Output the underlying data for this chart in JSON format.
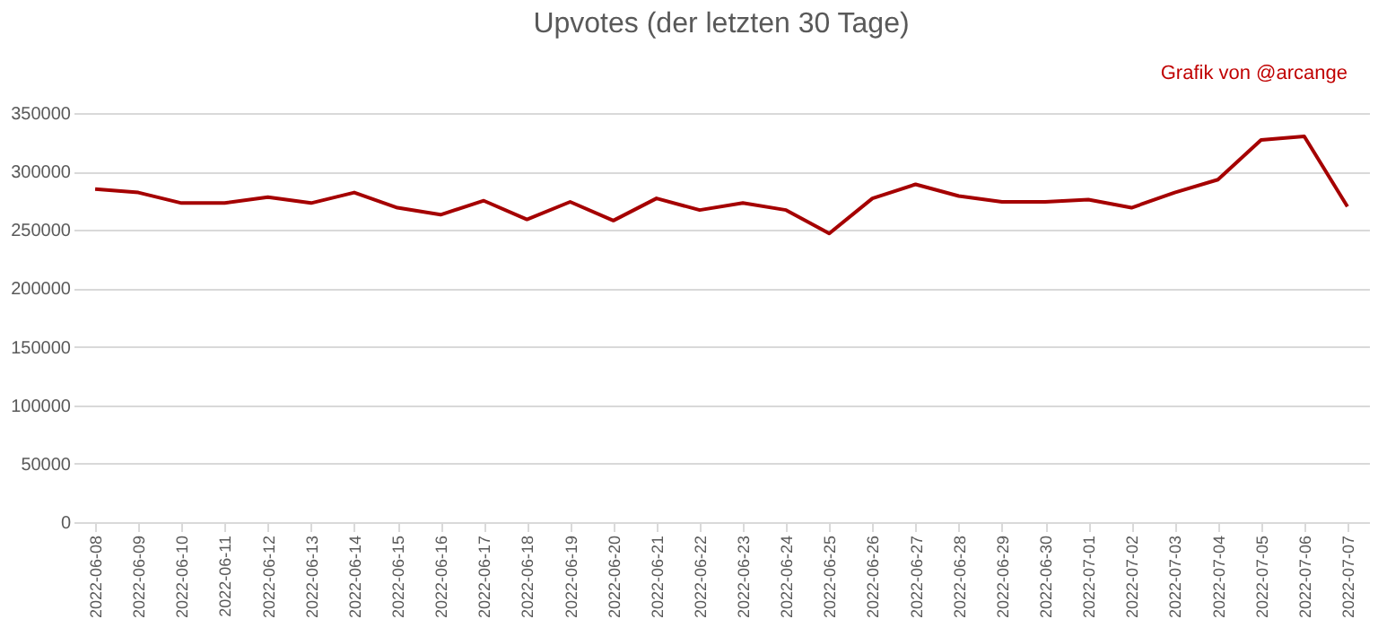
{
  "chart_data": {
    "type": "line",
    "title": "Upvotes (der letzten 30 Tage)",
    "annotations": [
      "Grafik von @arcange"
    ],
    "categories": [
      "2022-06-08",
      "2022-06-09",
      "2022-06-10",
      "2022-06-11",
      "2022-06-12",
      "2022-06-13",
      "2022-06-14",
      "2022-06-15",
      "2022-06-16",
      "2022-06-17",
      "2022-06-18",
      "2022-06-19",
      "2022-06-20",
      "2022-06-21",
      "2022-06-22",
      "2022-06-23",
      "2022-06-24",
      "2022-06-25",
      "2022-06-26",
      "2022-06-27",
      "2022-06-28",
      "2022-06-29",
      "2022-06-30",
      "2022-07-01",
      "2022-07-02",
      "2022-07-03",
      "2022-07-04",
      "2022-07-05",
      "2022-07-06",
      "2022-07-07"
    ],
    "series": [
      {
        "color": "#a50000",
        "values": [
          285000,
          282000,
          273000,
          273000,
          278000,
          273000,
          282000,
          269000,
          263000,
          275000,
          259000,
          274000,
          258000,
          277000,
          267000,
          273000,
          267000,
          247000,
          277000,
          289000,
          279000,
          274000,
          274000,
          276000,
          269000,
          282000,
          293000,
          327000,
          330000,
          270000
        ]
      }
    ],
    "ylim": [
      0,
      350000
    ],
    "yticks": [
      0,
      50000,
      100000,
      150000,
      200000,
      250000,
      300000,
      350000
    ],
    "grid": "y",
    "legend": false,
    "marker": "none",
    "line_style": "solid"
  }
}
